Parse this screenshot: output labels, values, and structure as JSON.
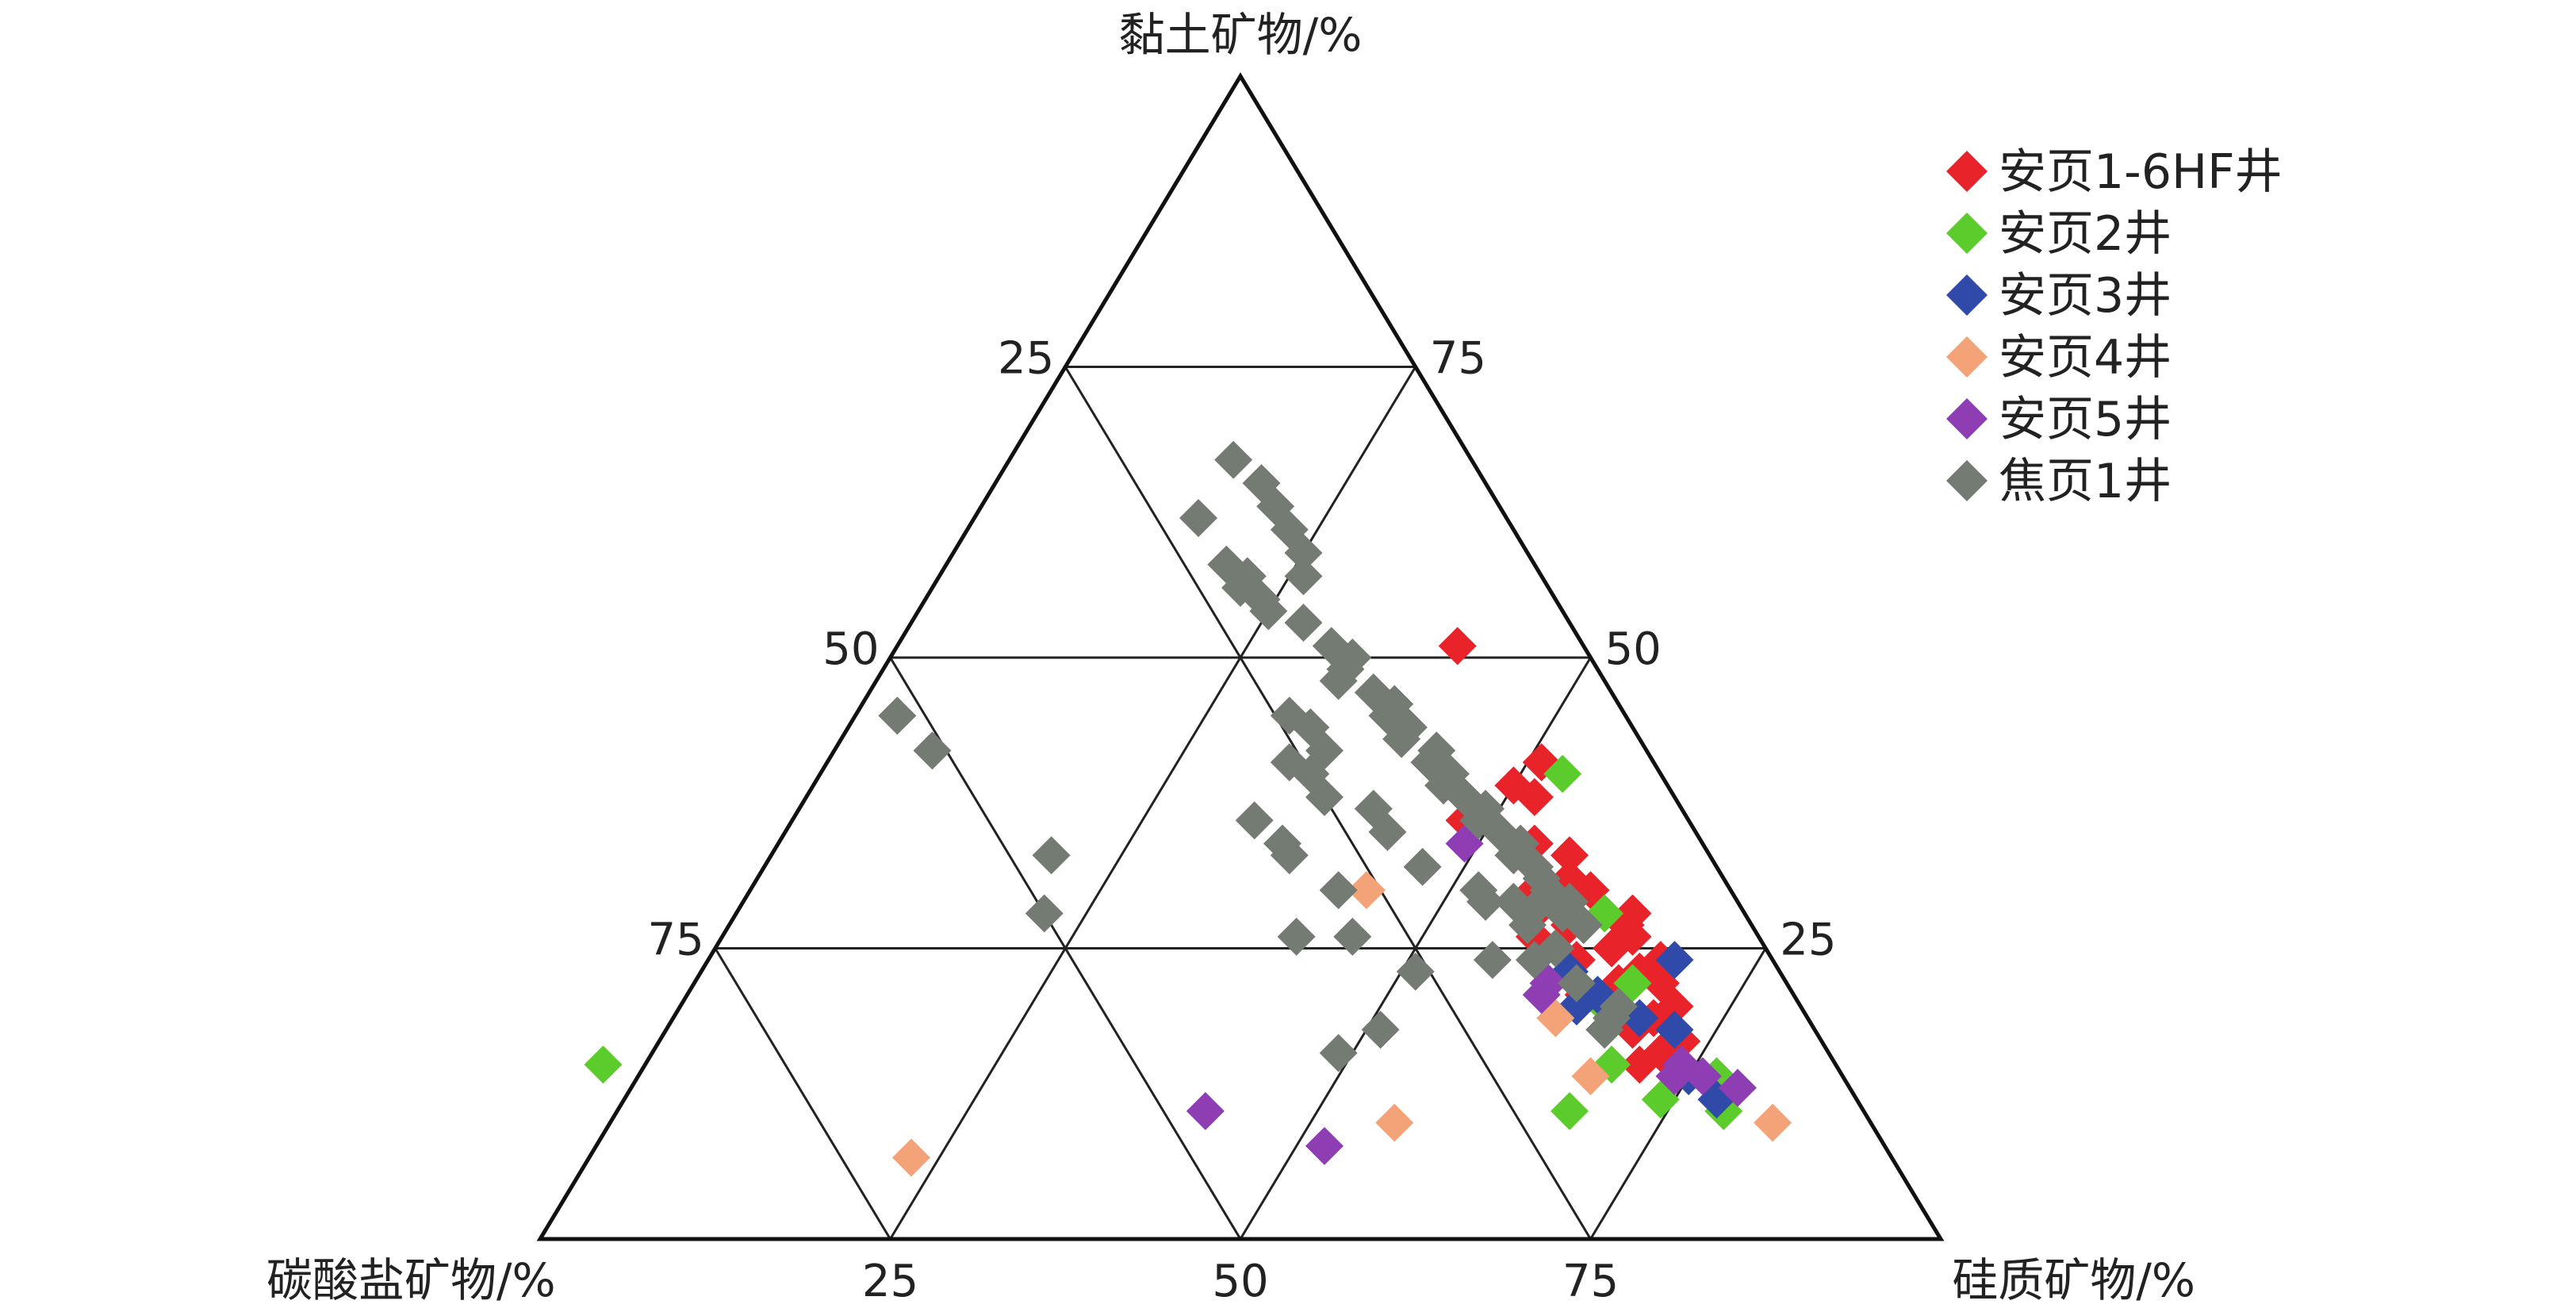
{
  "chart_data": {
    "type": "scatter",
    "subtype": "ternary",
    "axes": {
      "top": "黏土矿物/%",
      "left": "碳酸盐矿物/%",
      "right": "硅质矿物/%"
    },
    "ticks": {
      "left_edge": [
        "25",
        "50",
        "75"
      ],
      "right_edge": [
        "75",
        "50",
        "25"
      ],
      "bottom_edge": [
        "25",
        "50",
        "75"
      ]
    },
    "grid": true,
    "legend_position": "top-right",
    "value_order": [
      "clay",
      "carbonate",
      "silica"
    ],
    "series": [
      {
        "name": "安页1-6HF井",
        "color": "#e8232a",
        "points": [
          [
            51,
            9,
            40
          ],
          [
            41,
            8,
            51
          ],
          [
            39,
            11,
            50
          ],
          [
            38,
            10,
            52
          ],
          [
            35,
            14,
            51
          ],
          [
            34,
            12,
            54
          ],
          [
            33,
            10,
            57
          ],
          [
            32,
            13,
            55
          ],
          [
            31,
            11,
            58
          ],
          [
            30,
            14,
            56
          ],
          [
            30,
            10,
            60
          ],
          [
            29,
            12,
            59
          ],
          [
            28,
            15,
            57
          ],
          [
            27,
            9,
            64
          ],
          [
            27,
            13,
            60
          ],
          [
            26,
            16,
            58
          ],
          [
            25,
            11,
            64
          ],
          [
            24,
            14,
            62
          ],
          [
            23,
            10,
            67
          ],
          [
            22,
            12,
            66
          ],
          [
            21,
            15,
            64
          ],
          [
            20,
            9,
            71
          ],
          [
            19,
            11,
            70
          ],
          [
            18,
            13,
            69
          ],
          [
            17,
            10,
            73
          ],
          [
            16,
            12,
            72
          ],
          [
            15,
            14,
            71
          ],
          [
            28,
            8,
            64
          ],
          [
            24,
            8,
            68
          ],
          [
            22,
            9,
            69
          ],
          [
            36,
            16,
            48
          ],
          [
            26,
            9,
            65
          ]
        ]
      },
      {
        "name": "安页2井",
        "color": "#5ccc2c",
        "points": [
          [
            40,
            7,
            53
          ],
          [
            28,
            10,
            62
          ],
          [
            22,
            11,
            67
          ],
          [
            20,
            14,
            66
          ],
          [
            15,
            16,
            69
          ],
          [
            12,
            14,
            74
          ],
          [
            11,
            21,
            68
          ],
          [
            14,
            9,
            77
          ],
          [
            11,
            10,
            79
          ],
          [
            15,
            88,
            -3
          ]
        ]
      },
      {
        "name": "安页3井",
        "color": "#2f4aa8",
        "points": [
          [
            24,
            7,
            69
          ],
          [
            23,
            15,
            62
          ],
          [
            21,
            14,
            65
          ],
          [
            20,
            16,
            64
          ],
          [
            19,
            12,
            69
          ],
          [
            14,
            11,
            75
          ],
          [
            12,
            10,
            78
          ],
          [
            18,
            10,
            72
          ]
        ]
      },
      {
        "name": "安页4井",
        "color": "#f4a378",
        "points": [
          [
            30,
            26,
            44
          ],
          [
            19,
            18,
            63
          ],
          [
            14,
            18,
            68
          ],
          [
            10,
            7,
            83
          ],
          [
            10,
            34,
            56
          ],
          [
            7,
            70,
            23
          ]
        ]
      },
      {
        "name": "安页5井",
        "color": "#8e3db3",
        "points": [
          [
            34,
            17,
            49
          ],
          [
            22,
            17,
            61
          ],
          [
            21,
            18,
            61
          ],
          [
            15,
            11,
            74
          ],
          [
            14,
            10,
            76
          ],
          [
            13,
            8,
            79
          ],
          [
            14,
            12,
            74
          ],
          [
            11,
            47,
            42
          ],
          [
            8,
            40,
            52
          ]
        ]
      },
      {
        "name": "焦页1井",
        "color": "#737b73",
        "points": [
          [
            67,
            17,
            16
          ],
          [
            65,
            16,
            19
          ],
          [
            63,
            16,
            21
          ],
          [
            61,
            16,
            23
          ],
          [
            59,
            16,
            25
          ],
          [
            57,
            17,
            26
          ],
          [
            62,
            22,
            16
          ],
          [
            58,
            22,
            20
          ],
          [
            57,
            21,
            22
          ],
          [
            56,
            22,
            22
          ],
          [
            55,
            21,
            24
          ],
          [
            54,
            21,
            25
          ],
          [
            53,
            19,
            28
          ],
          [
            51,
            18,
            31
          ],
          [
            50,
            17,
            33
          ],
          [
            49,
            18,
            33
          ],
          [
            48,
            19,
            33
          ],
          [
            47,
            17,
            36
          ],
          [
            46,
            16,
            38
          ],
          [
            45,
            17,
            38
          ],
          [
            44,
            16,
            40
          ],
          [
            43,
            17,
            40
          ],
          [
            42,
            15,
            43
          ],
          [
            41,
            16,
            43
          ],
          [
            40,
            15,
            45
          ],
          [
            39,
            16,
            45
          ],
          [
            38,
            15,
            47
          ],
          [
            37,
            14,
            49
          ],
          [
            36,
            15,
            49
          ],
          [
            35,
            14,
            51
          ],
          [
            34,
            13,
            53
          ],
          [
            33,
            14,
            53
          ],
          [
            32,
            13,
            55
          ],
          [
            31,
            13,
            56
          ],
          [
            30,
            13,
            57
          ],
          [
            29,
            12,
            59
          ],
          [
            28,
            13,
            59
          ],
          [
            27,
            12,
            61
          ],
          [
            45,
            24,
            31
          ],
          [
            44,
            23,
            33
          ],
          [
            42,
            23,
            35
          ],
          [
            41,
            26,
            33
          ],
          [
            40,
            25,
            35
          ],
          [
            38,
            25,
            37
          ],
          [
            37,
            22,
            41
          ],
          [
            35,
            22,
            43
          ],
          [
            33,
            30,
            37
          ],
          [
            32,
            21,
            47
          ],
          [
            30,
            18,
            52
          ],
          [
            29,
            16,
            55
          ],
          [
            27,
            16,
            57
          ],
          [
            25,
            15,
            60
          ],
          [
            24,
            17,
            59
          ],
          [
            22,
            15,
            63
          ],
          [
            20,
            13,
            67
          ],
          [
            19,
            14,
            67
          ],
          [
            18,
            15,
            67
          ],
          [
            45,
            52,
            3
          ],
          [
            42,
            51,
            7
          ],
          [
            36,
            31,
            33
          ],
          [
            34,
            30,
            36
          ],
          [
            30,
            28,
            42
          ],
          [
            33,
            47,
            20
          ],
          [
            26,
            29,
            45
          ],
          [
            26,
            33,
            41
          ],
          [
            23,
            26,
            51
          ],
          [
            24,
            20,
            56
          ],
          [
            18,
            31,
            51
          ],
          [
            28,
            50,
            22
          ],
          [
            16,
            35,
            49
          ],
          [
            29,
            14,
            57
          ],
          [
            29,
            18,
            53
          ]
        ]
      }
    ]
  }
}
